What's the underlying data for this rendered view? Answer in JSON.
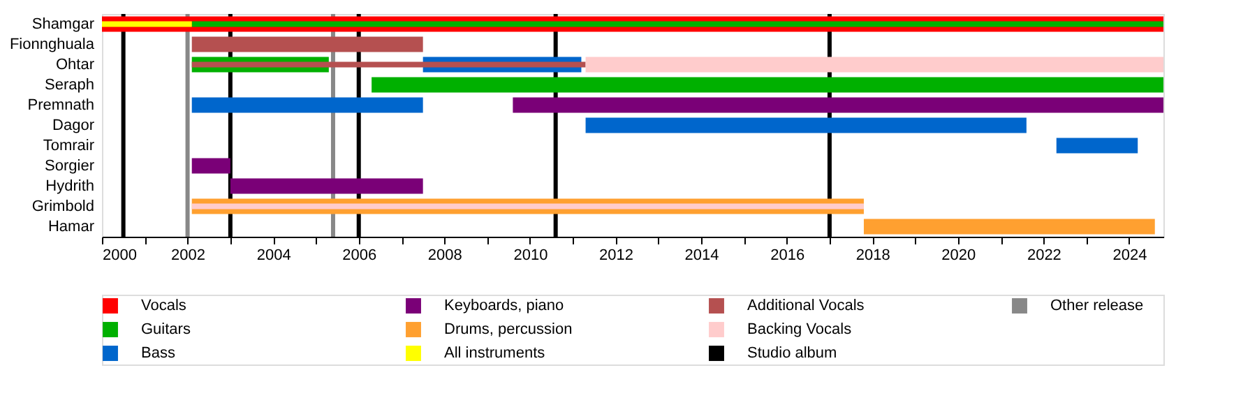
{
  "chart_data": {
    "type": "bar",
    "orientation": "horizontal",
    "legend": "bottom",
    "grid": false,
    "categories": [
      "Shamgar",
      "Fionnghuala",
      "Ohtar",
      "Seraph",
      "Premnath",
      "Dagor",
      "Tomrair",
      "Sorgier",
      "Hydrith",
      "Grimbold",
      "Hamar"
    ],
    "xlim": [
      2000,
      2024.8
    ],
    "xticks": [
      2000,
      {
        "value": 2001,
        "label": null
      },
      2002,
      {
        "value": 2003,
        "label": null
      },
      2004,
      {
        "value": 2005,
        "label": null
      },
      2006,
      {
        "value": 2007,
        "label": null
      },
      2008,
      {
        "value": 2009,
        "label": null
      },
      2010,
      {
        "value": 2011,
        "label": null
      },
      2012,
      {
        "value": 2013,
        "label": null
      },
      2014,
      {
        "value": 2015,
        "label": null
      },
      2016,
      {
        "value": 2017,
        "label": null
      },
      2018,
      {
        "value": 2019,
        "label": null
      },
      2020,
      {
        "value": 2021,
        "label": null
      },
      2022,
      {
        "value": 2023,
        "label": null
      },
      2024
    ],
    "series": [
      {
        "name": "Vocals",
        "color": "#ff0000",
        "values": [
          24.8,
          null,
          null,
          null,
          null,
          null,
          null,
          null,
          null,
          null,
          null
        ],
        "base": [
          2000,
          null,
          null,
          null,
          null,
          null,
          null,
          null,
          null,
          null,
          null
        ]
      },
      {
        "name": "Guitars",
        "color": "#00b000",
        "values": [
          22.7,
          null,
          3.2,
          18.5,
          null,
          null,
          null,
          null,
          null,
          null,
          null
        ],
        "base": [
          2002.1,
          null,
          2002.1,
          2006.3,
          null,
          null,
          null,
          null,
          null,
          null,
          null
        ]
      },
      {
        "name": "Bass",
        "color": "#0066cc",
        "values": [
          null,
          null,
          3.7,
          null,
          5.4,
          10.3,
          1.9,
          null,
          null,
          null,
          null
        ],
        "base": [
          null,
          null,
          2007.5,
          null,
          2002.1,
          2011.3,
          2022.3,
          null,
          null,
          null,
          null
        ]
      },
      {
        "name": "Keyboards, piano",
        "color": "#7a0077",
        "values": [
          null,
          null,
          null,
          null,
          15.2,
          null,
          null,
          0.9,
          4.5,
          null,
          null
        ],
        "base": [
          null,
          null,
          null,
          null,
          2009.6,
          null,
          null,
          2002.1,
          2003.0,
          null,
          null
        ]
      },
      {
        "name": "Drums, percussion",
        "color": "#ffa030",
        "values": [
          null,
          null,
          null,
          null,
          null,
          null,
          null,
          null,
          null,
          15.7,
          6.8
        ],
        "base": [
          null,
          null,
          null,
          null,
          null,
          null,
          null,
          null,
          null,
          2002.1,
          2017.8
        ]
      },
      {
        "name": "All instruments",
        "color": "#ffff00",
        "values": [
          2.1,
          null,
          null,
          null,
          null,
          null,
          null,
          null,
          null,
          null,
          null
        ],
        "base": [
          2000,
          null,
          null,
          null,
          null,
          null,
          null,
          null,
          null,
          null,
          null
        ]
      },
      {
        "name": "Additional Vocals",
        "color": "#b55050",
        "values": [
          null,
          5.4,
          9.2,
          null,
          null,
          null,
          null,
          null,
          null,
          null,
          null
        ],
        "base": [
          null,
          2002.1,
          2002.1,
          null,
          null,
          null,
          null,
          null,
          null,
          null,
          null
        ]
      },
      {
        "name": "Backing Vocals",
        "color": "#ffcccc",
        "values": [
          null,
          null,
          13.5,
          null,
          null,
          null,
          null,
          null,
          null,
          15.7,
          null
        ],
        "base": [
          null,
          null,
          2011.3,
          null,
          null,
          null,
          null,
          null,
          null,
          2002.1,
          null
        ]
      }
    ],
    "ref_lines": [
      {
        "axis": "x",
        "value": 2000.5,
        "label": "Studio album",
        "color": "#000000"
      },
      {
        "axis": "x",
        "value": 2003.0,
        "color": "#000000"
      },
      {
        "axis": "x",
        "value": 2006.0,
        "color": "#000000"
      },
      {
        "axis": "x",
        "value": 2010.6,
        "color": "#000000"
      },
      {
        "axis": "x",
        "value": 2017.0,
        "color": "#000000"
      },
      {
        "axis": "x",
        "value": 2002.0,
        "label": "Other release",
        "color": "#888888"
      },
      {
        "axis": "x",
        "value": 2005.4,
        "color": "#888888"
      }
    ]
  }
}
